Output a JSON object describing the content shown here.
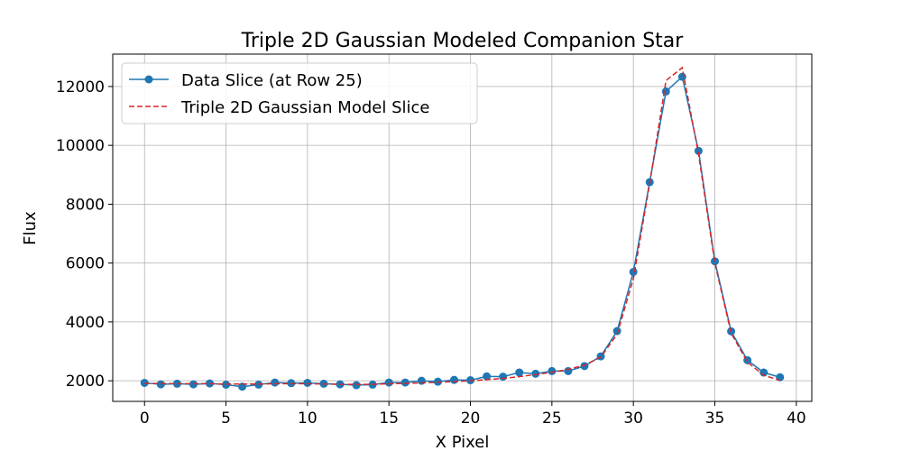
{
  "chart_data": {
    "type": "line",
    "title": "Triple 2D Gaussian Modeled Companion Star",
    "xlabel": "X Pixel",
    "ylabel": "Flux",
    "xlim": [
      -1.95,
      40.95
    ],
    "ylim": [
      1300,
      13100
    ],
    "xticks": [
      0,
      5,
      10,
      15,
      20,
      25,
      30,
      35,
      40
    ],
    "yticks": [
      2000,
      4000,
      6000,
      8000,
      10000,
      12000
    ],
    "grid": true,
    "legend_position": "top-left",
    "x": [
      0,
      1,
      2,
      3,
      4,
      5,
      6,
      7,
      8,
      9,
      10,
      11,
      12,
      13,
      14,
      15,
      16,
      17,
      18,
      19,
      20,
      21,
      22,
      23,
      24,
      25,
      26,
      27,
      28,
      29,
      30,
      31,
      32,
      33,
      34,
      35,
      36,
      37,
      38,
      39
    ],
    "series": [
      {
        "name": "Data Slice (at Row 25)",
        "color": "#1f77b4",
        "style": "solid-with-markers",
        "values": [
          1930,
          1880,
          1900,
          1880,
          1910,
          1870,
          1800,
          1870,
          1940,
          1920,
          1930,
          1900,
          1880,
          1850,
          1870,
          1940,
          1940,
          2000,
          1970,
          2030,
          2020,
          2150,
          2140,
          2280,
          2240,
          2330,
          2330,
          2500,
          2830,
          3690,
          5700,
          8750,
          11830,
          12330,
          9810,
          6060,
          3680,
          2700,
          2280,
          2120
        ]
      },
      {
        "name": "Triple 2D Gaussian Model Slice",
        "color": "#d62728",
        "style": "dashed",
        "values": [
          1910,
          1910,
          1900,
          1900,
          1900,
          1890,
          1890,
          1890,
          1900,
          1900,
          1900,
          1890,
          1880,
          1880,
          1880,
          1900,
          1910,
          1930,
          1950,
          1970,
          2000,
          2040,
          2080,
          2140,
          2210,
          2290,
          2390,
          2530,
          2800,
          3580,
          5470,
          8700,
          12200,
          12640,
          9700,
          6000,
          3620,
          2630,
          2190,
          2010
        ]
      }
    ]
  }
}
